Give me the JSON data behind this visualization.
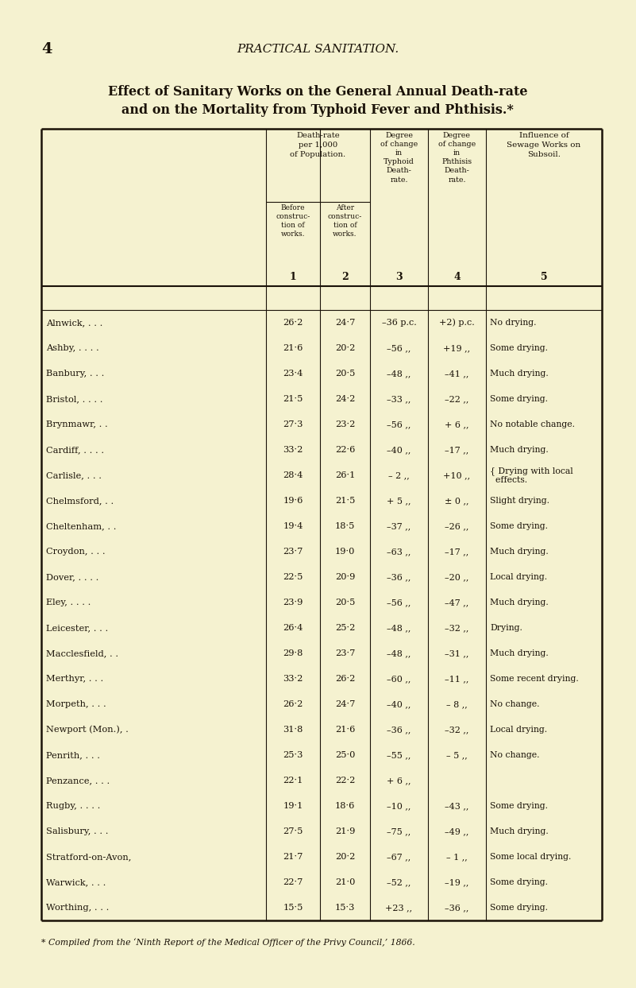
{
  "page_number": "4",
  "page_header": "PRACTICAL SANITATION.",
  "title_line1": "Effect of Sanitary Works on the General Annual Death-rate",
  "title_line2": "and on the Mortality from Typhoid Fever and Phthisis.*",
  "bg_color": "#f5f2d0",
  "text_color": "#1a1208",
  "line_color": "#1a1208",
  "rows": [
    [
      "Alnwick, . . .",
      "26·2",
      "24·7",
      "–36 p.c.",
      "+2) p.c.",
      "No drying."
    ],
    [
      "Ashby, . . . .",
      "21·6",
      "20·2",
      "–56 ,,",
      "+19 ,,",
      "Some drying."
    ],
    [
      "Banbury, . . .",
      "23·4",
      "20·5",
      "–48 ,,",
      "–41 ,,",
      "Much drying."
    ],
    [
      "Bristol, . . . .",
      "21·5",
      "24·2",
      "–33 ,,",
      "–22 ,,",
      "Some drying."
    ],
    [
      "Brynmawr, . .",
      "27·3",
      "23·2",
      "–56 ,,",
      "+ 6 ,,",
      "No notable change."
    ],
    [
      "Cardiff, . . . .",
      "33·2",
      "22·6",
      "–40 ,,",
      "–17 ,,",
      "Much drying."
    ],
    [
      "Carlisle, . . .",
      "28·4",
      "26·1",
      "– 2 ,,",
      "+10 ,,",
      "{ Drying with local\n  effects."
    ],
    [
      "Chelmsford, . .",
      "19·6",
      "21·5",
      "+ 5 ,,",
      "± 0 ,,",
      "Slight drying."
    ],
    [
      "Cheltenham, . .",
      "19·4",
      "18·5",
      "–37 ,,",
      "–26 ,,",
      "Some drying."
    ],
    [
      "Croydon, . . .",
      "23·7",
      "19·0",
      "–63 ,,",
      "–17 ,,",
      "Much drying."
    ],
    [
      "Dover, . . . .",
      "22·5",
      "20·9",
      "–36 ,,",
      "–20 ,,",
      "Local drying."
    ],
    [
      "Eley, . . . .",
      "23·9",
      "20·5",
      "–56 ,,",
      "–47 ,,",
      "Much drying."
    ],
    [
      "Leicester, . . .",
      "26·4",
      "25·2",
      "–48 ,,",
      "–32 ,,",
      "Drying."
    ],
    [
      "Macclesfield, . .",
      "29·8",
      "23·7",
      "–48 ,,",
      "–31 ,,",
      "Much drying."
    ],
    [
      "Merthyr, . . .",
      "33·2",
      "26·2",
      "–60 ,,",
      "–11 ,,",
      "Some recent drying."
    ],
    [
      "Morpeth, . . .",
      "26·2",
      "24·7",
      "–40 ,,",
      "– 8 ,,",
      "No change."
    ],
    [
      "Newport (Mon.), .",
      "31·8",
      "21·6",
      "–36 ,,",
      "–32 ,,",
      "Local drying."
    ],
    [
      "Penrith, . . .",
      "25·3",
      "25·0",
      "–55 ,,",
      "– 5 ,,",
      "No change."
    ],
    [
      "Penzance, . . .",
      "22·1",
      "22·2",
      "+ 6 ,,",
      "",
      ""
    ],
    [
      "Rugby, . . . .",
      "19·1",
      "18·6",
      "–10 ,,",
      "–43 ,,",
      "Some drying."
    ],
    [
      "Salisbury, . . .",
      "27·5",
      "21·9",
      "–75 ,,",
      "–49 ,,",
      "Much drying."
    ],
    [
      "Stratford-on-Avon,",
      "21·7",
      "20·2",
      "–67 ,,",
      "– 1 ,,",
      "Some local drying."
    ],
    [
      "Warwick, . . .",
      "22·7",
      "21·0",
      "–52 ,,",
      "–19 ,,",
      "Some drying."
    ],
    [
      "Worthing, . . .",
      "15·5",
      "15·3",
      "+23 ,,",
      "–36 ,,",
      "Some drying."
    ]
  ],
  "footnote": "* Compiled from the ‘Ninth Report of the Medical Officer of the Privy Council,’ 1866."
}
